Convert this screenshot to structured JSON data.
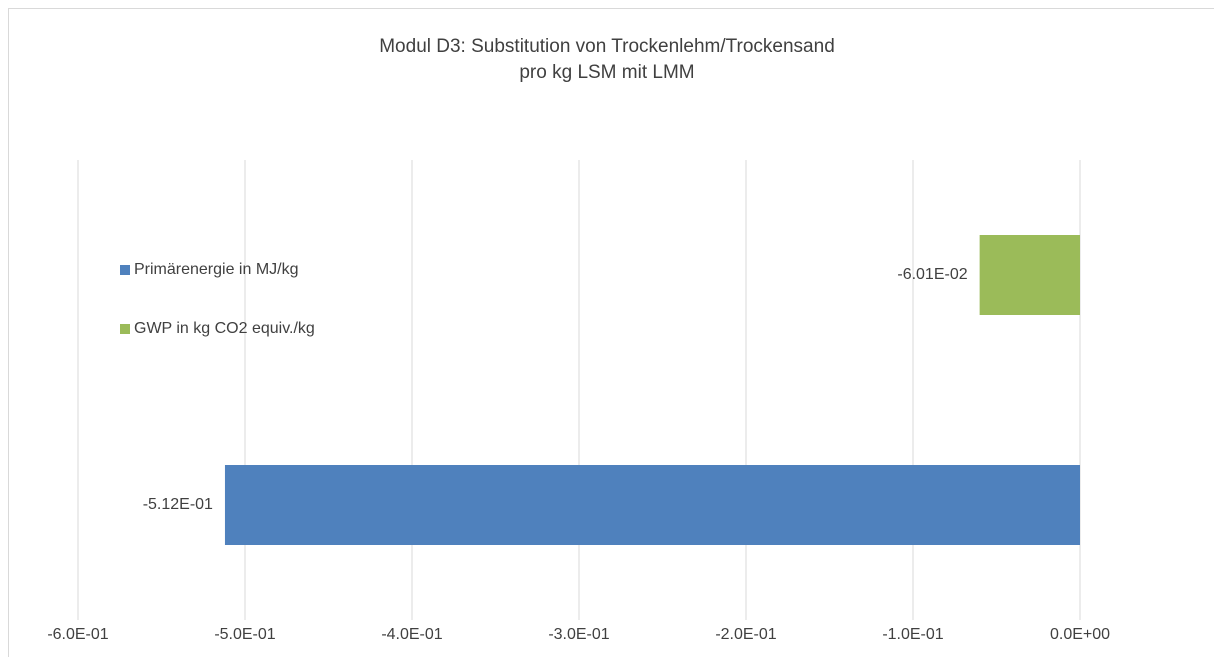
{
  "chart_data": {
    "type": "barh",
    "title": [
      "Modul D3: Substitution von Trockenlehm/Trockensand",
      "pro kg LSM mit LMM"
    ],
    "categories": [
      "Primärenergie in MJ/kg",
      "GWP in kg CO2 equiv./kg"
    ],
    "values": [
      -0.512,
      -0.0601
    ],
    "value_labels": [
      "-5.12E-01",
      "-6.01E-02"
    ],
    "colors": [
      "#4f81bd",
      "#9bbb59"
    ],
    "xlim": [
      -0.6,
      0
    ],
    "xticks": [
      {
        "value": -0.6,
        "label": "-6.0E-01"
      },
      {
        "value": -0.5,
        "label": "-5.0E-01"
      },
      {
        "value": -0.4,
        "label": "-4.0E-01"
      },
      {
        "value": -0.3,
        "label": "-3.0E-01"
      },
      {
        "value": -0.2,
        "label": "-2.0E-01"
      },
      {
        "value": -0.1,
        "label": "-1.0E-01"
      },
      {
        "value": 0,
        "label": "0.0E+00"
      }
    ],
    "grid": true,
    "legend": "left"
  }
}
